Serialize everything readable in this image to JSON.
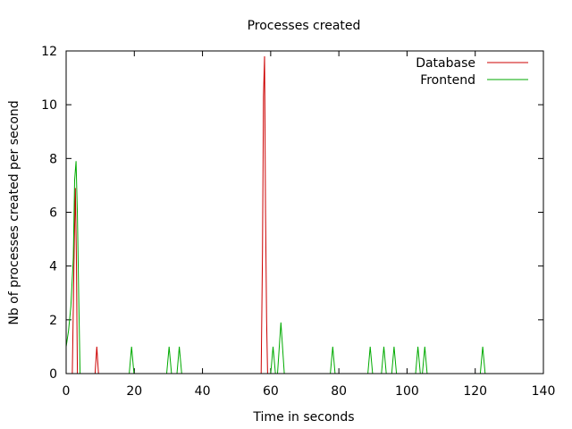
{
  "chart_data": {
    "type": "line",
    "title": "Processes created",
    "xlabel": "Time in seconds",
    "ylabel": "Nb of processes created per second",
    "xlim": [
      0,
      140
    ],
    "ylim": [
      0,
      12
    ],
    "xticks": [
      0,
      20,
      40,
      60,
      80,
      100,
      120,
      140
    ],
    "yticks": [
      0,
      2,
      4,
      6,
      8,
      10,
      12
    ],
    "grid": false,
    "legend_position": "top-right",
    "series": [
      {
        "name": "Database",
        "color": "#cc0000",
        "points": [
          [
            1.8,
            0
          ],
          [
            2.4,
            5.0
          ],
          [
            2.7,
            6.9
          ],
          [
            3.0,
            4.5
          ],
          [
            3.3,
            0
          ],
          [
            8.5,
            0
          ],
          [
            9.0,
            1.0
          ],
          [
            9.5,
            0
          ],
          [
            57.2,
            0
          ],
          [
            57.6,
            4.5
          ],
          [
            57.9,
            10.3
          ],
          [
            58.2,
            11.8
          ],
          [
            58.5,
            6.0
          ],
          [
            58.8,
            2.0
          ],
          [
            59.1,
            0
          ]
        ]
      },
      {
        "name": "Frontend",
        "color": "#00aa00",
        "points": [
          [
            0,
            1.0
          ],
          [
            0.7,
            1.6
          ],
          [
            1.4,
            2.5
          ],
          [
            2.1,
            4.3
          ],
          [
            2.5,
            7.2
          ],
          [
            2.9,
            7.9
          ],
          [
            3.3,
            5.9
          ],
          [
            3.7,
            2.8
          ],
          [
            4.1,
            0
          ],
          [
            18.5,
            0
          ],
          [
            19.2,
            1.0
          ],
          [
            19.9,
            0
          ],
          [
            29.5,
            0
          ],
          [
            30.2,
            1.0
          ],
          [
            30.9,
            0
          ],
          [
            32.5,
            0
          ],
          [
            33.2,
            1.0
          ],
          [
            33.9,
            0
          ],
          [
            60,
            0
          ],
          [
            60.7,
            1.0
          ],
          [
            61.4,
            0
          ],
          [
            62,
            0
          ],
          [
            63,
            1.9
          ],
          [
            64,
            0
          ],
          [
            77.5,
            0
          ],
          [
            78.2,
            1.0
          ],
          [
            78.9,
            0
          ],
          [
            88.5,
            0
          ],
          [
            89.2,
            1.0
          ],
          [
            89.9,
            0
          ],
          [
            92.5,
            0
          ],
          [
            93.2,
            1.0
          ],
          [
            93.9,
            0
          ],
          [
            95.5,
            0
          ],
          [
            96.2,
            1.0
          ],
          [
            96.9,
            0
          ],
          [
            102.5,
            0
          ],
          [
            103.2,
            1.0
          ],
          [
            103.9,
            0
          ],
          [
            104.5,
            0
          ],
          [
            105.2,
            1.0
          ],
          [
            105.9,
            0
          ],
          [
            121.5,
            0
          ],
          [
            122.2,
            1.0
          ],
          [
            122.9,
            0
          ]
        ]
      }
    ]
  }
}
